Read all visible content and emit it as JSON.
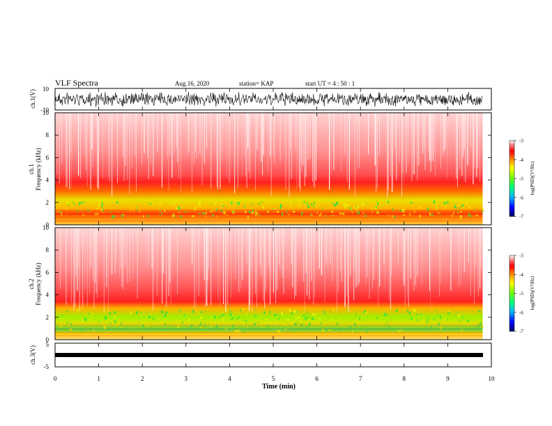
{
  "header": {
    "title": "VLF Spectra",
    "date": "Aug.16, 2020",
    "station": "station= KAP",
    "start_time": "start  UT =   4 : 50 : 1"
  },
  "chart_data": [
    {
      "type": "line",
      "name": "ch1-waveform",
      "ylabel": "ch.1(V)",
      "ylim": [
        -10,
        10
      ],
      "ytick_labels": [
        "10",
        "-10"
      ],
      "xlim": [
        0,
        10
      ],
      "x_extent": [
        0,
        9.8
      ],
      "color": "#000000"
    },
    {
      "type": "heatmap",
      "name": "ch1-spectrogram",
      "ylabel": "ch.1\nFrequency (kHz)",
      "ylim": [
        0,
        10
      ],
      "yticks": [
        0,
        2,
        4,
        6,
        8,
        10
      ],
      "xlim": [
        0,
        10
      ],
      "x_extent": [
        0,
        9.8
      ]
    },
    {
      "type": "heatmap",
      "name": "ch2-spectrogram",
      "ylabel": "ch.2\nFrequency (kHz)",
      "ylim": [
        0,
        10
      ],
      "yticks": [
        0,
        2,
        4,
        6,
        8,
        10
      ],
      "xlim": [
        0,
        10
      ],
      "x_extent": [
        0,
        9.8
      ]
    },
    {
      "type": "line",
      "name": "ch3-waveform",
      "ylabel": "ch.3(V)",
      "ylim": [
        -5,
        5
      ],
      "ytick_labels": [
        "5",
        "-5"
      ],
      "xlim": [
        0,
        10
      ],
      "x_extent": [
        0,
        9.8
      ],
      "xlabel": "Time (min)",
      "xticks": [
        0,
        1,
        2,
        3,
        4,
        5,
        6,
        7,
        8,
        9,
        10
      ],
      "color": "#000000"
    }
  ],
  "colorbars": [
    {
      "name": "ch1-colorbar",
      "label": "log(PSD)(V²/Hz)",
      "range": [
        -7,
        -3
      ],
      "tick_labels": [
        "-3",
        "-4",
        "-5",
        "-6",
        "-7"
      ]
    },
    {
      "name": "ch2-colorbar",
      "label": "log(PSD)(V²/Hz)",
      "range": [
        -7,
        -3
      ],
      "tick_labels": [
        "-3",
        "-4",
        "-5",
        "-6",
        "-7"
      ]
    }
  ]
}
